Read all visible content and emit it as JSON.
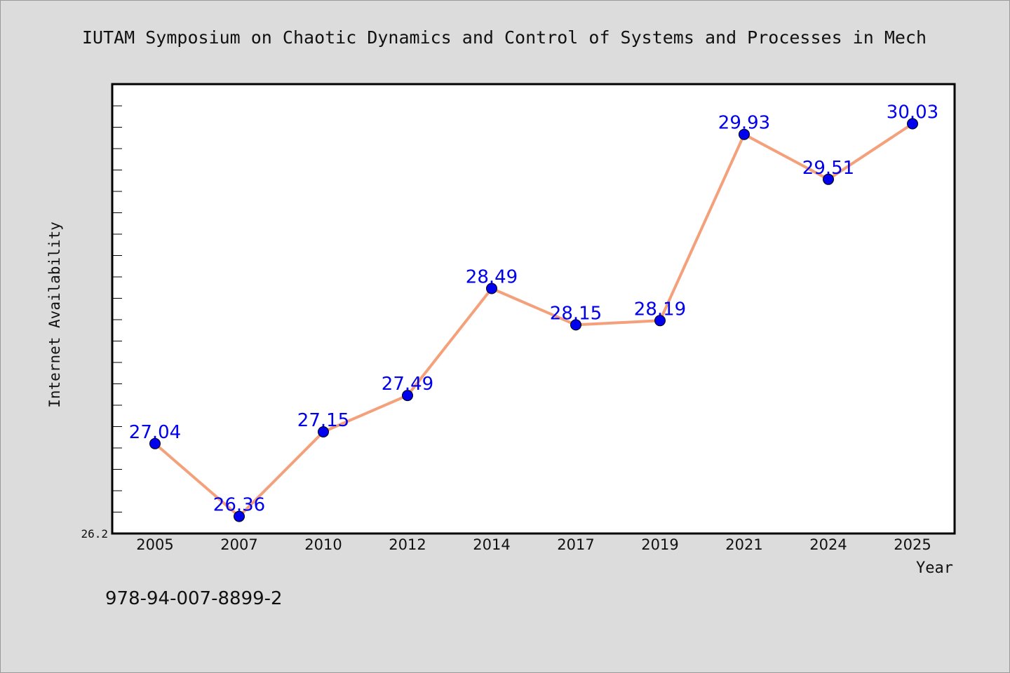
{
  "chart_data": {
    "type": "line",
    "title": "IUTAM Symposium on Chaotic Dynamics and Control of Systems and Processes in Mech",
    "xlabel": "Year",
    "ylabel": "Internet Availability",
    "categories": [
      "2005",
      "2007",
      "2010",
      "2012",
      "2014",
      "2017",
      "2019",
      "2021",
      "2024",
      "2025"
    ],
    "series": [
      {
        "values": [
          27.04,
          26.36,
          27.15,
          27.49,
          28.49,
          28.15,
          28.19,
          29.93,
          29.51,
          30.03
        ],
        "line_color": "#f4a07a",
        "marker_color": "#0000ee"
      }
    ],
    "data_labels": [
      "27.04",
      "26.36",
      "27.15",
      "27.49",
      "28.49",
      "28.15",
      "28.19",
      "29.93",
      "29.51",
      "30.03"
    ],
    "ylim": [
      26.2,
      30.4
    ],
    "y_tick_labels": [
      "26.2"
    ],
    "grid": false,
    "legend": "none",
    "label_color": "#0000ee"
  },
  "footer": {
    "isbn": "978-94-007-8899-2"
  }
}
